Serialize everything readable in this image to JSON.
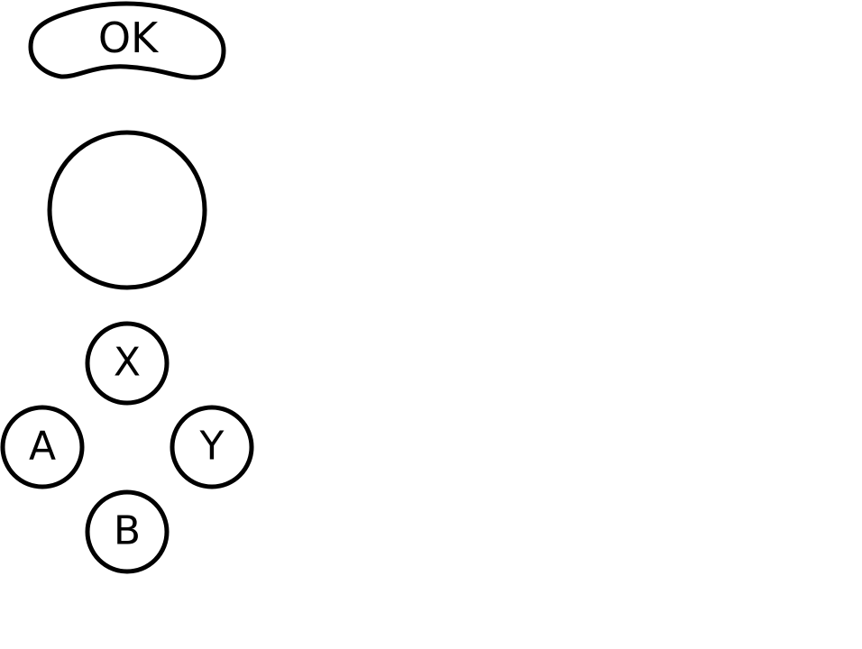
{
  "controls": {
    "ok_button": {
      "label": "OK"
    },
    "joystick": {
      "icon": "joystick-circle"
    },
    "face_buttons": {
      "x": {
        "label": "X"
      },
      "a": {
        "label": "A"
      },
      "y": {
        "label": "Y"
      },
      "b": {
        "label": "B"
      }
    }
  },
  "colors": {
    "stroke": "#000000",
    "fill": "#ffffff"
  }
}
